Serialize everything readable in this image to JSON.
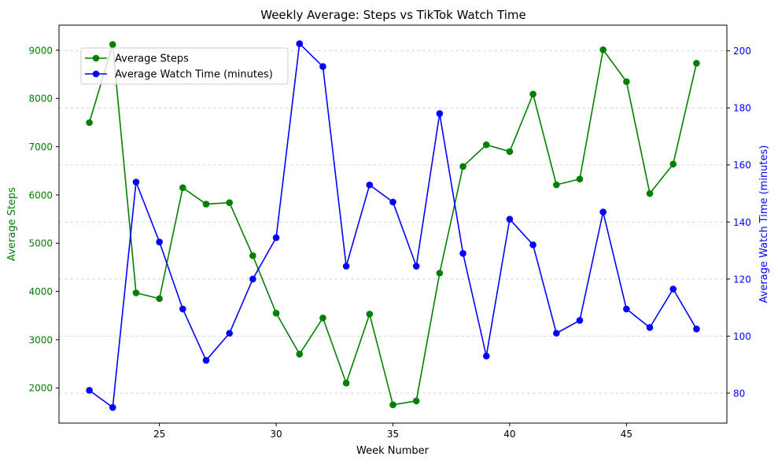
{
  "chart_data": {
    "type": "line",
    "title": "Weekly Average: Steps vs TikTok Watch Time",
    "xlabel": "Week Number",
    "ylabel_left": "Average Steps",
    "ylabel_right": "Average Watch Time (minutes)",
    "x": [
      22,
      23,
      24,
      25,
      26,
      27,
      28,
      29,
      30,
      31,
      32,
      33,
      34,
      35,
      36,
      37,
      38,
      39,
      40,
      41,
      42,
      43,
      44,
      45,
      46,
      47,
      48
    ],
    "xlim": [
      20.7,
      49.3
    ],
    "xticks": [
      25,
      30,
      35,
      40,
      45
    ],
    "ylim_left": [
      1270,
      9520
    ],
    "yticks_left": [
      2000,
      3000,
      4000,
      5000,
      6000,
      7000,
      8000,
      9000
    ],
    "ylim_right": [
      69.5,
      209
    ],
    "yticks_right": [
      80,
      100,
      120,
      140,
      160,
      180,
      200
    ],
    "grid": "y-dashed",
    "legend_position": "upper-left",
    "series": [
      {
        "name": "Average Steps",
        "axis": "left",
        "color": "#008000",
        "values": [
          7500,
          9120,
          3970,
          3850,
          6150,
          5810,
          5840,
          4740,
          3550,
          2700,
          3450,
          2100,
          3530,
          1650,
          1730,
          4380,
          6590,
          7040,
          6900,
          8090,
          6210,
          6330,
          9010,
          8350,
          6030,
          6640,
          8730
        ]
      },
      {
        "name": "Average Watch Time (minutes)",
        "axis": "right",
        "color": "#0000ff",
        "values": [
          81,
          75,
          154,
          133,
          109.5,
          91.5,
          101,
          120,
          134.5,
          202.5,
          194.5,
          124.5,
          153,
          147,
          124.5,
          178,
          129,
          93,
          141,
          132,
          101,
          105.5,
          143.5,
          109.5,
          103,
          116.5,
          102.5
        ]
      }
    ]
  }
}
